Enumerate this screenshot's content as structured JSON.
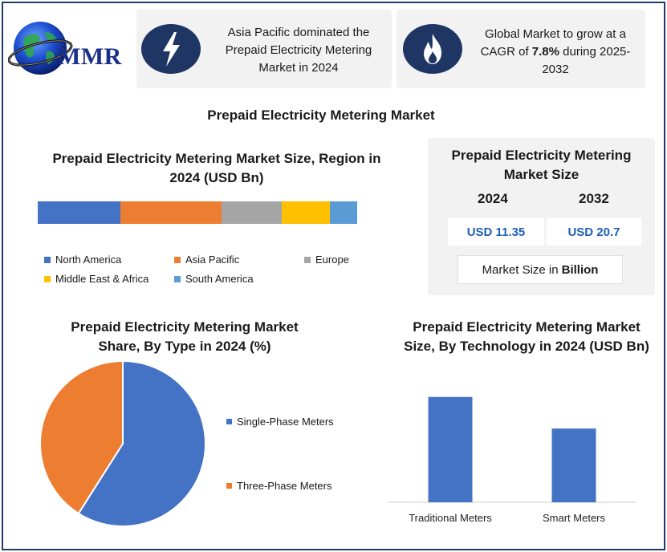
{
  "logo": {
    "text": "MMR"
  },
  "banners": [
    {
      "icon": "lightning-icon",
      "text": "Asia Pacific dominated the Prepaid Electricity Metering Market in 2024"
    },
    {
      "icon": "flame-icon",
      "text_before": "Global Market to grow at a CAGR of ",
      "text_bold": "7.8%",
      "text_after": " during 2025-2032"
    }
  ],
  "main_title": "Prepaid Electricity Metering Market",
  "market_size": {
    "title": "Prepaid Electricity Metering Market Size",
    "year_a": "2024",
    "year_b": "2032",
    "value_a": "USD 11.35",
    "value_b": "USD 20.7",
    "unit_prefix": "Market Size in",
    "unit_bold": "Billion"
  },
  "colors": {
    "north_america": "#4472c4",
    "asia_pacific": "#ed7d31",
    "europe": "#a5a5a5",
    "middle_east_africa": "#ffc000",
    "south_america": "#5b9bd5",
    "navy": "#1f3564"
  },
  "chart_data": [
    {
      "type": "bar",
      "stacked": true,
      "title": "Prepaid Electricity Metering Market Size, Region in 2024 (USD Bn)",
      "categories": [
        "2024"
      ],
      "series": [
        {
          "name": "North America",
          "values": [
            26
          ],
          "color": "#4472c4"
        },
        {
          "name": "Asia Pacific",
          "values": [
            31.5
          ],
          "color": "#ed7d31"
        },
        {
          "name": "Europe",
          "values": [
            19
          ],
          "color": "#a5a5a5"
        },
        {
          "name": "Middle East & Africa",
          "values": [
            15
          ],
          "color": "#ffc000"
        },
        {
          "name": "South America",
          "values": [
            8.5
          ],
          "color": "#5b9bd5"
        }
      ],
      "legend": "bottom"
    },
    {
      "type": "pie",
      "title": "Prepaid Electricity Metering Market Share, By Type in 2024 (%)",
      "labels": [
        "Single-Phase Meters",
        "Three-Phase Meters"
      ],
      "values": [
        59,
        41
      ],
      "colors": [
        "#4472c4",
        "#ed7d31"
      ],
      "legend": "right"
    },
    {
      "type": "bar",
      "title": "Prepaid Electricity Metering Market Size, By Technology in 2024 (USD Bn)",
      "categories": [
        "Traditional Meters",
        "Smart Meters"
      ],
      "values": [
        7.0,
        4.9
      ],
      "ylim": [
        0,
        8
      ],
      "color": "#4472c4",
      "grid": false
    }
  ]
}
